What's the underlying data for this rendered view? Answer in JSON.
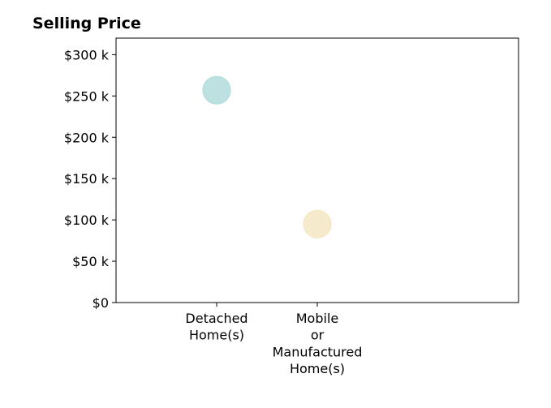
{
  "chart_data": {
    "type": "scatter",
    "title": "Selling Price",
    "xlabel": "",
    "ylabel": "",
    "categories": [
      [
        "Detached",
        "Home(s)"
      ],
      [
        "Mobile",
        "or",
        "Manufactured",
        "Home(s)"
      ]
    ],
    "points": [
      {
        "category_index": 0,
        "value": 257000,
        "color": "#b2dcdb"
      },
      {
        "category_index": 1,
        "value": 95000,
        "color": "#f5e6c4"
      }
    ],
    "ylim": [
      0,
      320000
    ],
    "yticks": [
      0,
      50000,
      100000,
      150000,
      200000,
      250000,
      300000
    ],
    "ytick_labels": [
      "$0",
      "$50 k",
      "$100 k",
      "$150 k",
      "$200 k",
      "$250 k",
      "$300 k"
    ],
    "grid": false,
    "legend": "none"
  }
}
